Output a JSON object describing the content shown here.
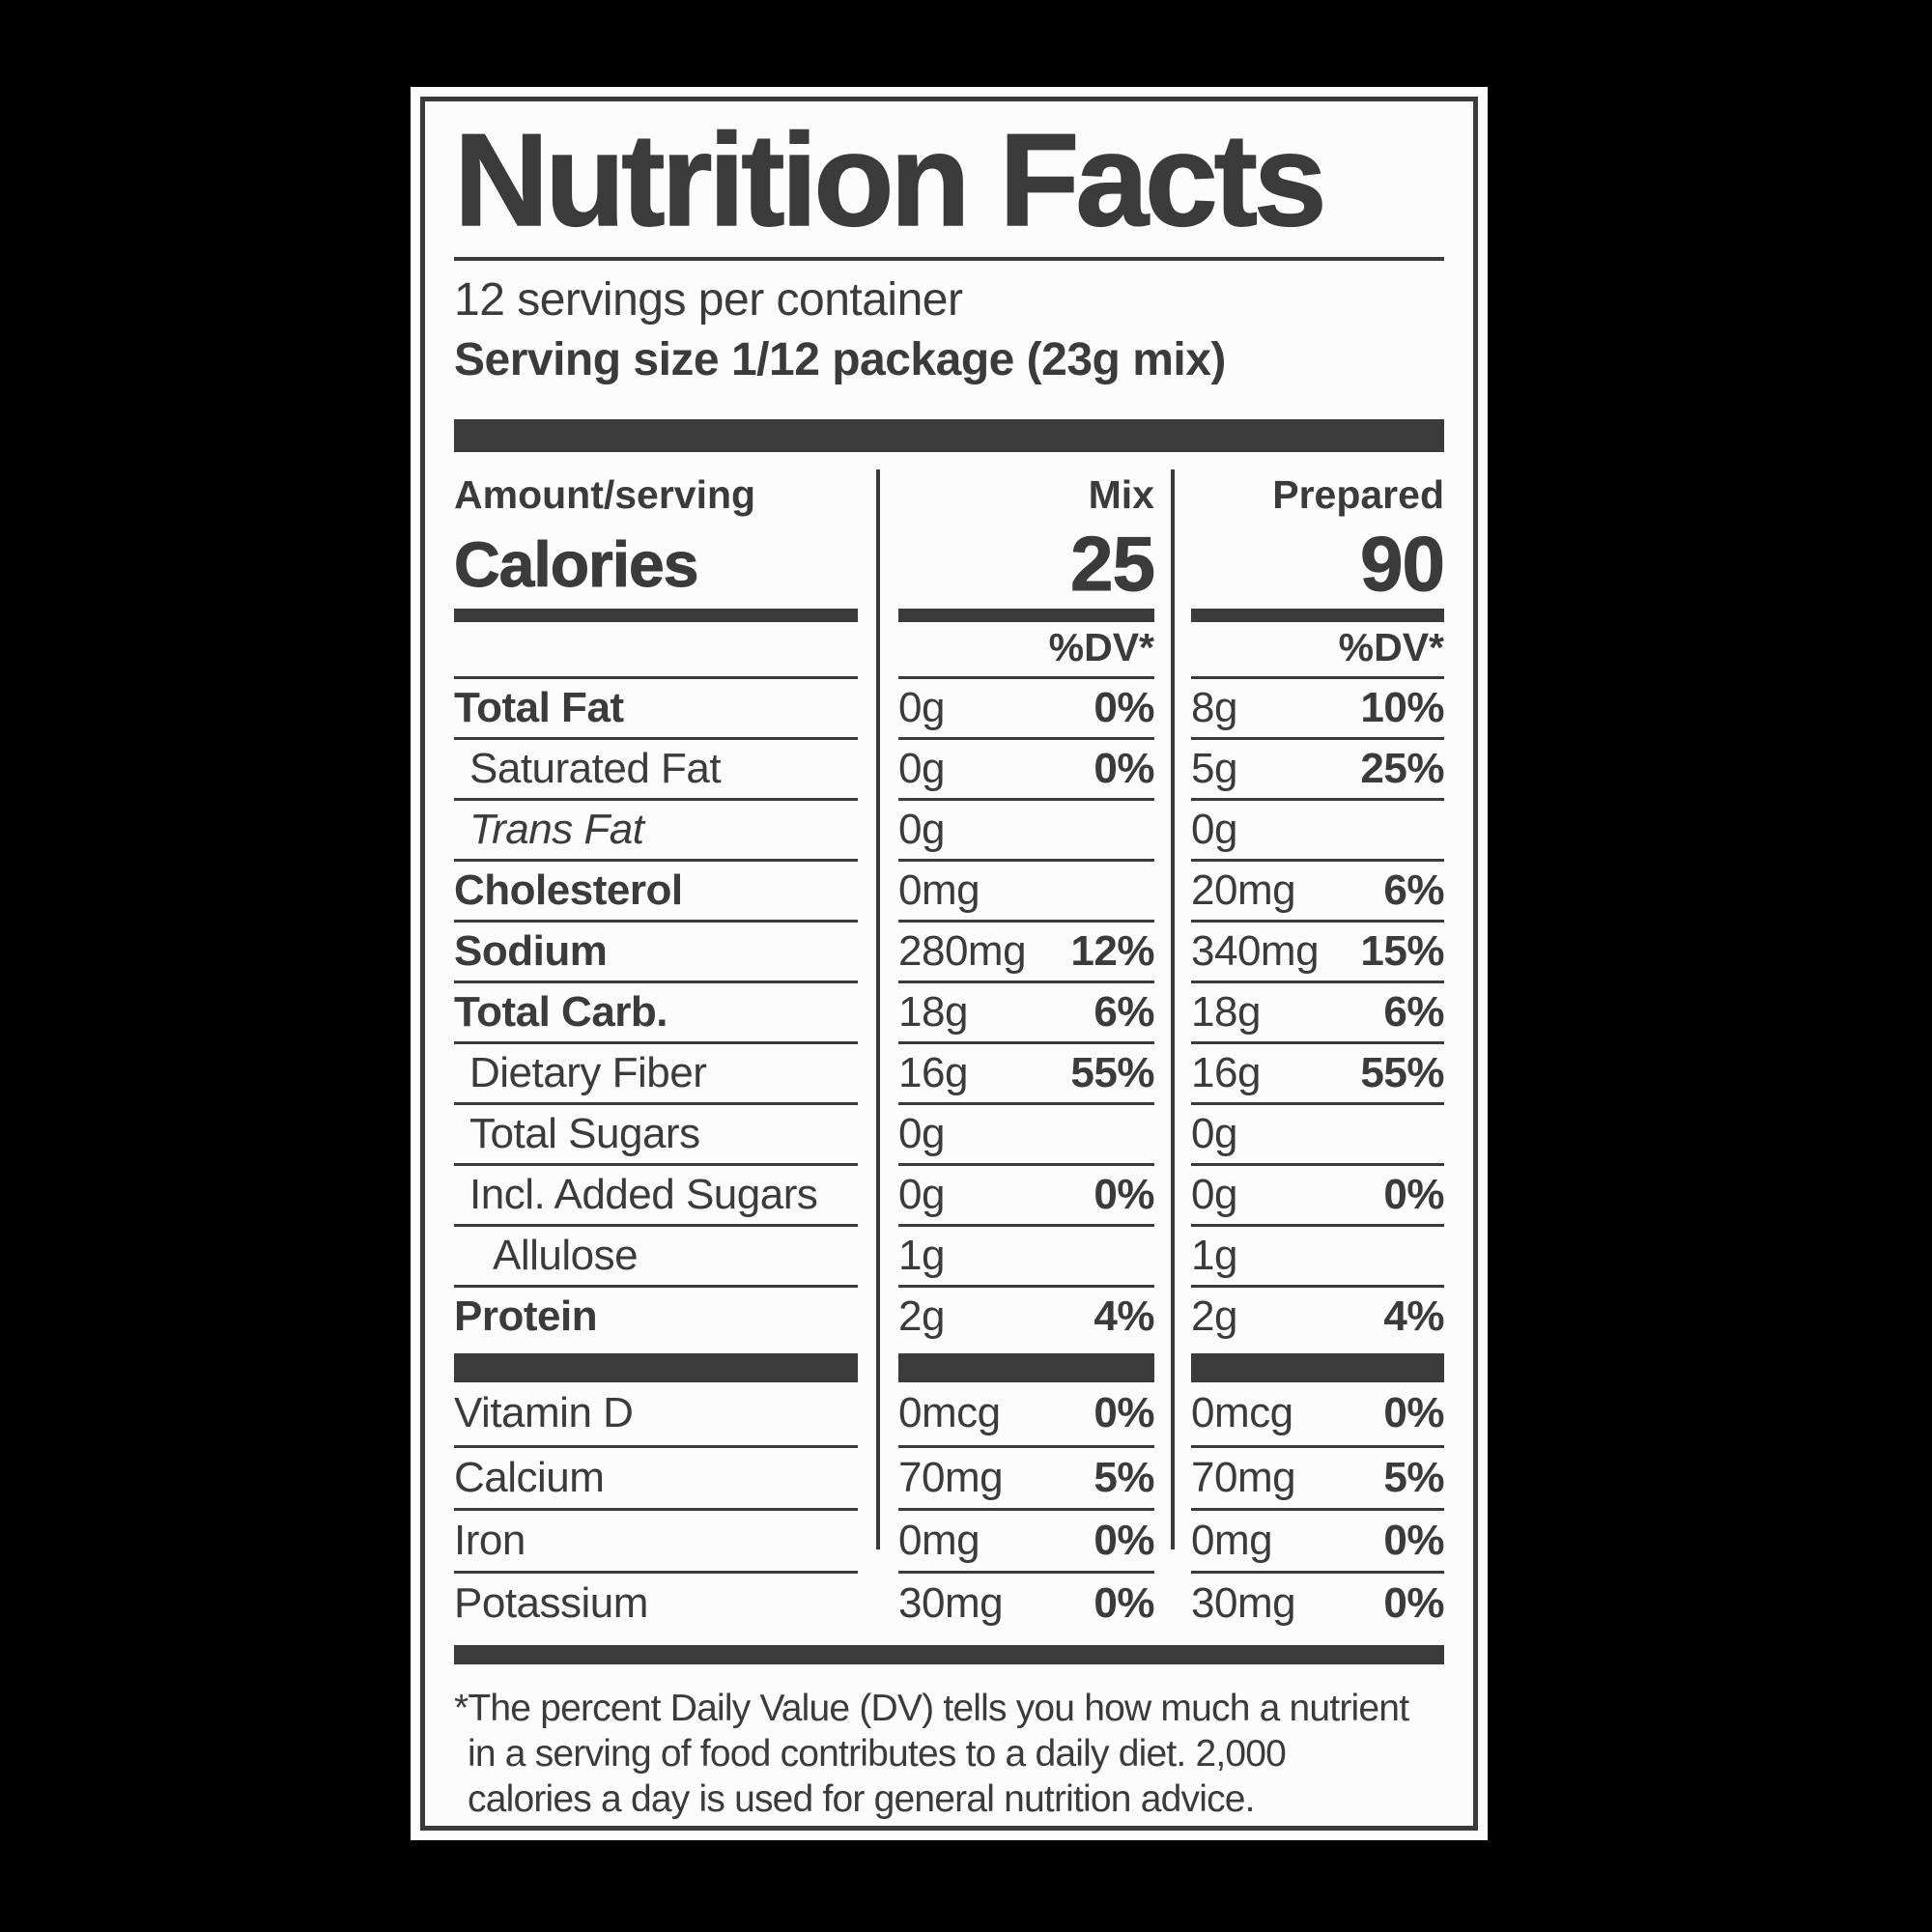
{
  "colors": {
    "ink": "#3b3b3b",
    "paper": "#fcfcfc",
    "background": "#000000"
  },
  "header": {
    "title": "Nutrition Facts",
    "servings_per_container": "12 servings per container",
    "serving_size": "Serving size 1/12 package (23g mix)"
  },
  "table": {
    "amount_header": "Amount/serving",
    "mix_header": "Mix",
    "prepared_header": "Prepared",
    "dv_header_mix": "%DV*",
    "dv_header_prepared": "%DV*",
    "calories_label": "Calories",
    "calories_mix": "25",
    "calories_prepared": "90"
  },
  "nutrients": [
    {
      "name": "Total Fat",
      "mix": {
        "amount": "0g",
        "dv": "0%"
      },
      "prepared": {
        "amount": "8g",
        "dv": "10%"
      }
    },
    {
      "name": "Saturated Fat",
      "mix": {
        "amount": "0g",
        "dv": "0%"
      },
      "prepared": {
        "amount": "5g",
        "dv": "25%"
      }
    },
    {
      "name": "Trans Fat",
      "mix": {
        "amount": "0g",
        "dv": ""
      },
      "prepared": {
        "amount": "0g",
        "dv": ""
      }
    },
    {
      "name": "Cholesterol",
      "mix": {
        "amount": "0mg",
        "dv": ""
      },
      "prepared": {
        "amount": "20mg",
        "dv": "6%"
      }
    },
    {
      "name": "Sodium",
      "mix": {
        "amount": "280mg",
        "dv": "12%"
      },
      "prepared": {
        "amount": "340mg",
        "dv": "15%"
      }
    },
    {
      "name": "Total Carb.",
      "mix": {
        "amount": "18g",
        "dv": "6%"
      },
      "prepared": {
        "amount": "18g",
        "dv": "6%"
      }
    },
    {
      "name": "Dietary Fiber",
      "mix": {
        "amount": "16g",
        "dv": "55%"
      },
      "prepared": {
        "amount": "16g",
        "dv": "55%"
      }
    },
    {
      "name": "Total Sugars",
      "mix": {
        "amount": "0g",
        "dv": ""
      },
      "prepared": {
        "amount": "0g",
        "dv": ""
      }
    },
    {
      "name": "Incl. Added Sugars",
      "mix": {
        "amount": "0g",
        "dv": "0%"
      },
      "prepared": {
        "amount": "0g",
        "dv": "0%"
      }
    },
    {
      "name": "Allulose",
      "mix": {
        "amount": "1g",
        "dv": ""
      },
      "prepared": {
        "amount": "1g",
        "dv": ""
      }
    },
    {
      "name": "Protein",
      "mix": {
        "amount": "2g",
        "dv": "4%"
      },
      "prepared": {
        "amount": "2g",
        "dv": "4%"
      }
    }
  ],
  "vitamins": [
    {
      "name": "Vitamin D",
      "mix": {
        "amount": "0mcg",
        "dv": "0%"
      },
      "prepared": {
        "amount": "0mcg",
        "dv": "0%"
      }
    },
    {
      "name": "Calcium",
      "mix": {
        "amount": "70mg",
        "dv": "5%"
      },
      "prepared": {
        "amount": "70mg",
        "dv": "5%"
      }
    },
    {
      "name": "Iron",
      "mix": {
        "amount": "0mg",
        "dv": "0%"
      },
      "prepared": {
        "amount": "0mg",
        "dv": "0%"
      }
    },
    {
      "name": "Potassium",
      "mix": {
        "amount": "30mg",
        "dv": "0%"
      },
      "prepared": {
        "amount": "30mg",
        "dv": "0%"
      }
    }
  ],
  "footnote": {
    "lines": [
      "*The percent Daily Value (DV) tells you how much a nutrient",
      "in a serving of food contributes to a daily diet. 2,000",
      "calories a day is used for general nutrition advice."
    ]
  }
}
